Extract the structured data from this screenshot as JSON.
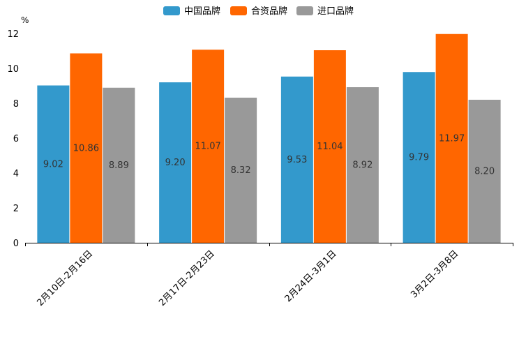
{
  "chart_data": {
    "type": "bar",
    "categories": [
      "2月10日-2月16日",
      "2月17日-2月23日",
      "2月24日-3月1日",
      "3月2日-3月8日"
    ],
    "series": [
      {
        "name": "中国品牌",
        "values": [
          9.02,
          9.2,
          9.53,
          9.79
        ],
        "labels": [
          "9.02",
          "9.20",
          "9.53",
          "9.79"
        ],
        "color": "#3399cc"
      },
      {
        "name": "合资品牌",
        "values": [
          10.86,
          11.07,
          11.04,
          11.97
        ],
        "labels": [
          "10.86",
          "11.07",
          "11.04",
          "11.97"
        ],
        "color": "#ff6600"
      },
      {
        "name": "进口品牌",
        "values": [
          8.89,
          8.32,
          8.92,
          8.2
        ],
        "labels": [
          "8.89",
          "8.32",
          "8.92",
          "8.20"
        ],
        "color": "#999999"
      }
    ],
    "ylim": [
      0,
      12
    ],
    "yticks": [
      "0",
      "2",
      "4",
      "6",
      "8",
      "10",
      "12"
    ],
    "ylabel": "%",
    "legend_position": "top-center",
    "grid": false
  }
}
